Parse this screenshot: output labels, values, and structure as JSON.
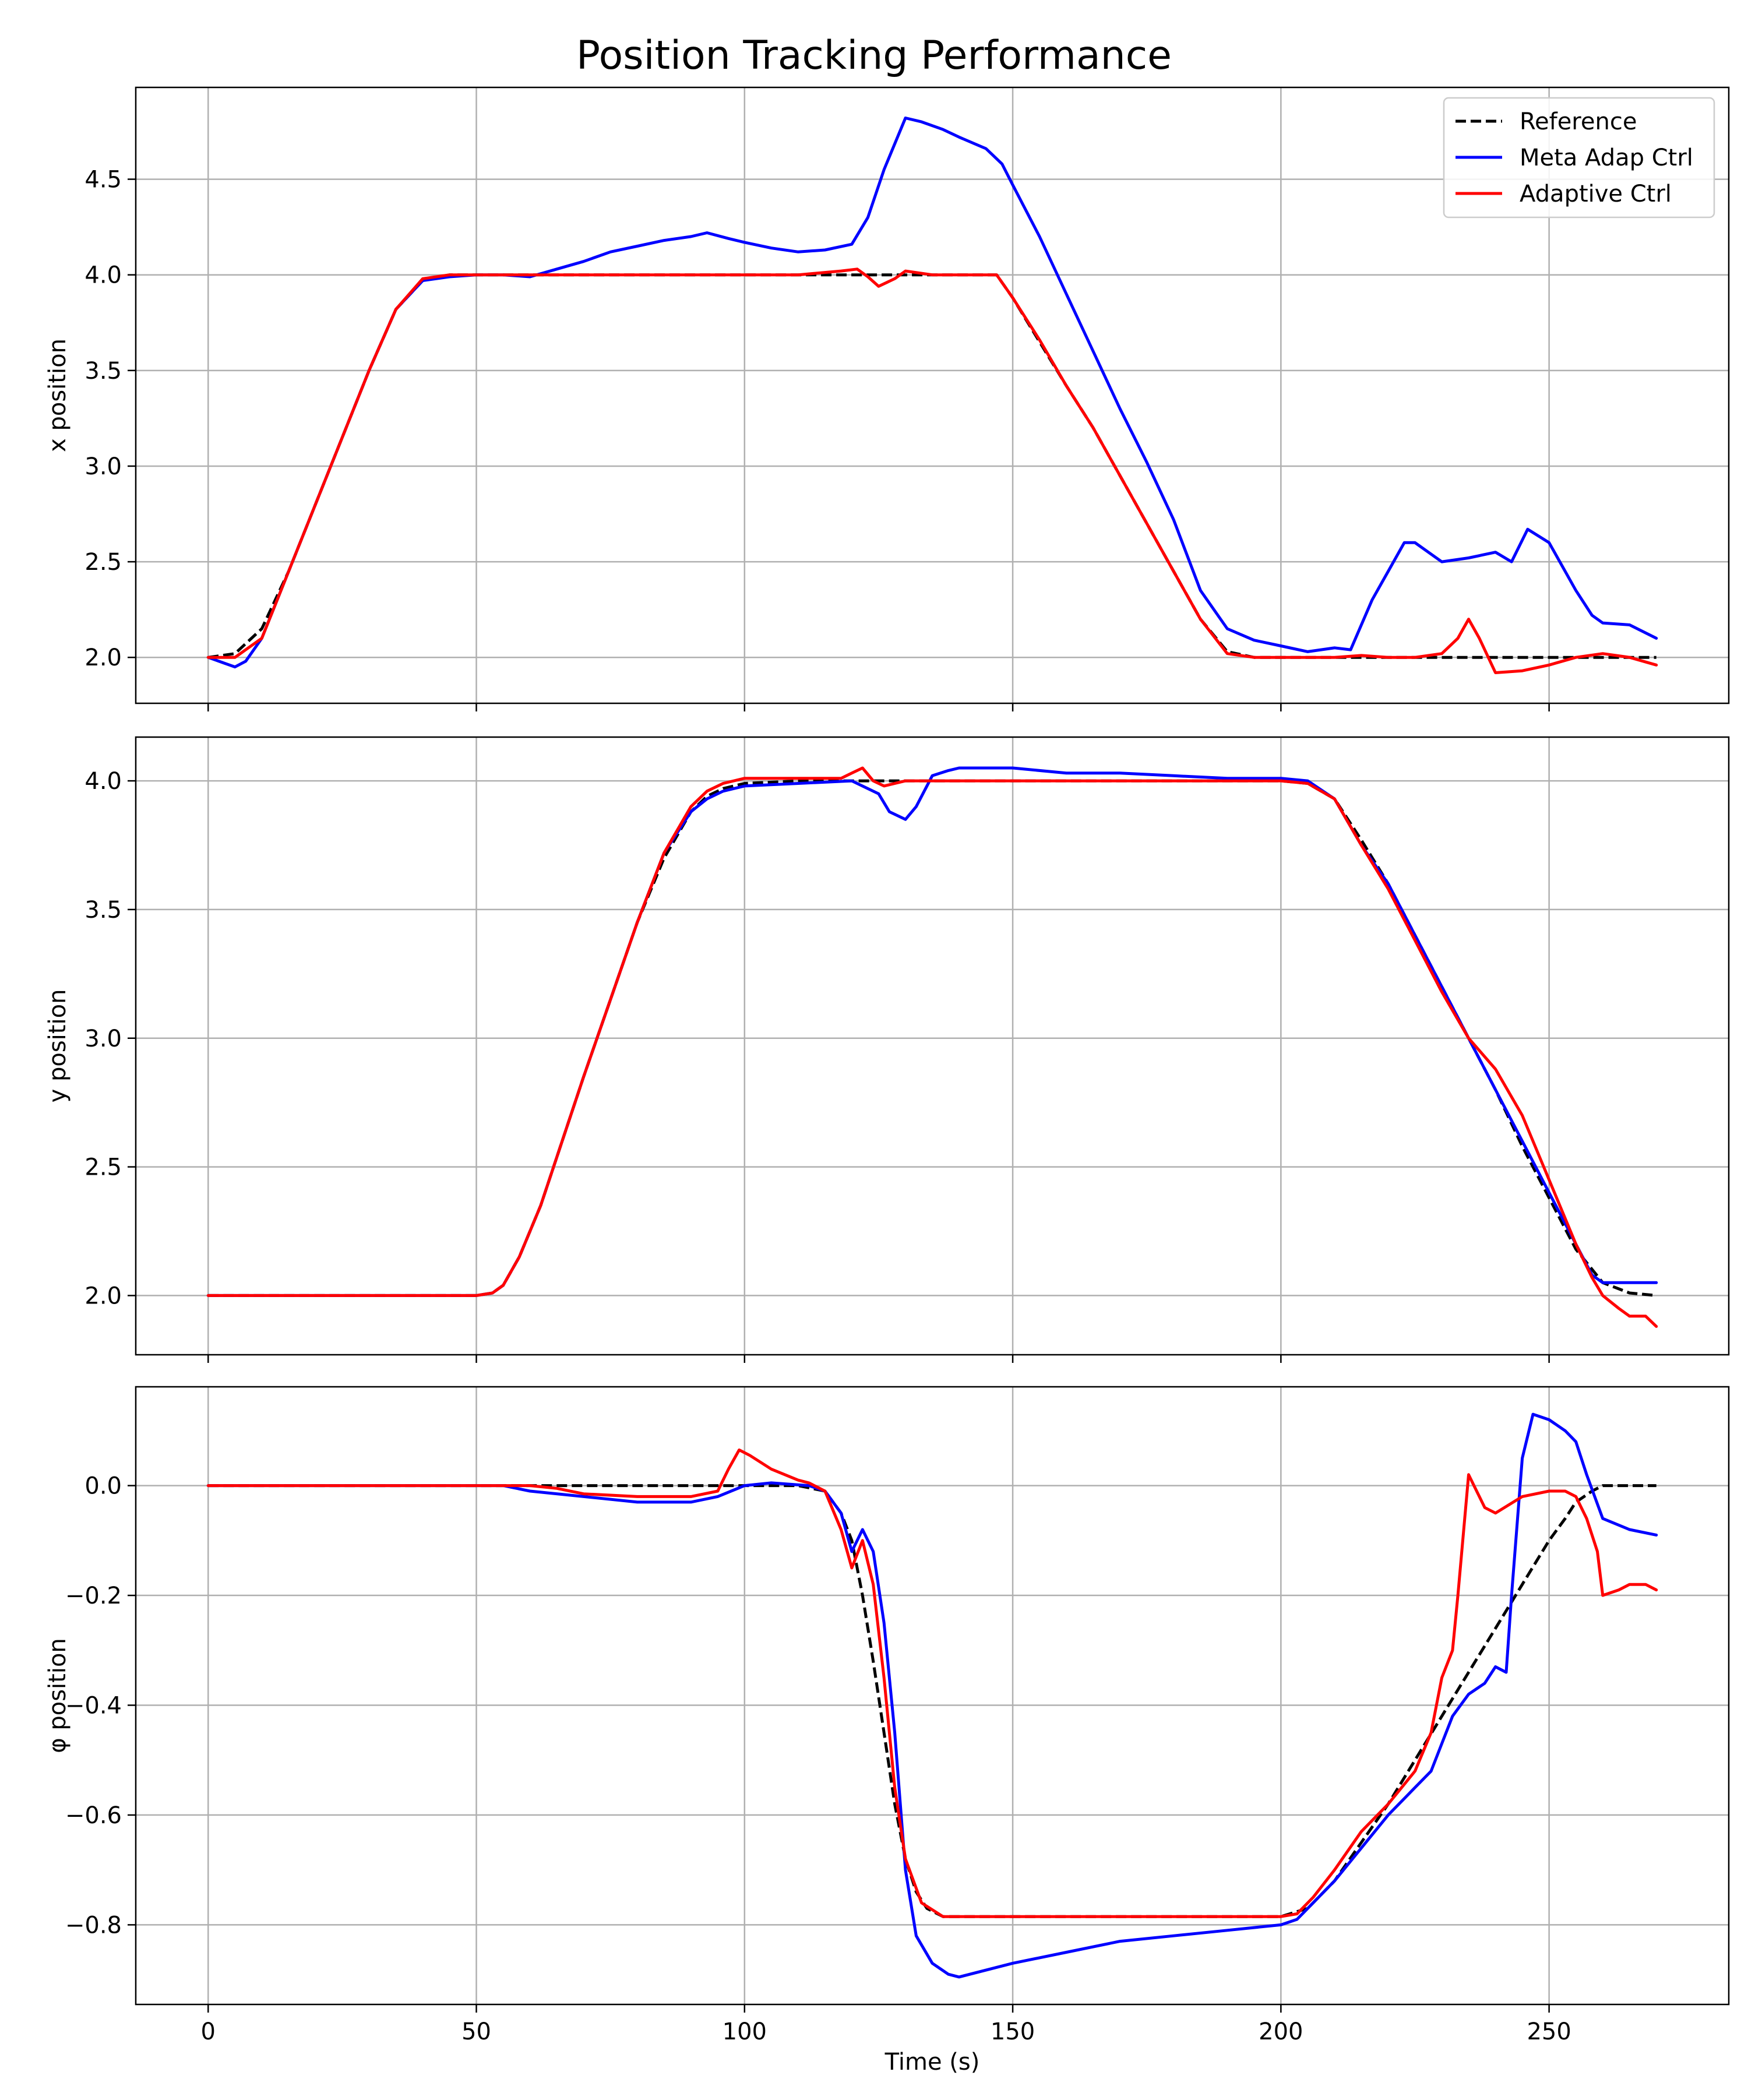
{
  "figure": {
    "title": "Position Tracking Performance"
  },
  "colors": {
    "reference": "#000000",
    "meta": "#0000ff",
    "adaptive": "#ff0000",
    "grid": "#b0b0b0"
  },
  "legend": {
    "position": "top-right",
    "entries": [
      {
        "label": "Reference",
        "color": "#000000",
        "dashed": true
      },
      {
        "label": "Meta Adap Ctrl",
        "color": "#0000ff",
        "dashed": false
      },
      {
        "label": "Adaptive Ctrl",
        "color": "#ff0000",
        "dashed": false
      }
    ]
  },
  "chart_data": [
    {
      "type": "line",
      "title": "Position Tracking Performance",
      "xlabel": "",
      "ylabel": "x position",
      "xlim": [
        -13.5,
        283.5
      ],
      "ylim": [
        1.76,
        4.98
      ],
      "xticks": [
        0,
        50,
        100,
        150,
        200,
        250
      ],
      "xticklabels": [
        "0",
        "50",
        "100",
        "150",
        "200",
        "250"
      ],
      "yticks": [
        2.0,
        2.5,
        3.0,
        3.5,
        4.0,
        4.5
      ],
      "yticklabels": [
        "2.0",
        "2.5",
        "3.0",
        "3.5",
        "4.0",
        "4.5"
      ],
      "grid": true,
      "series": [
        {
          "name": "Reference",
          "color": "#000000",
          "dashed": true,
          "x": [
            0,
            5,
            10,
            15,
            20,
            25,
            30,
            35,
            40,
            45,
            50,
            60,
            70,
            80,
            90,
            100,
            110,
            120,
            130,
            140,
            147,
            150,
            155,
            160,
            165,
            170,
            175,
            180,
            185,
            190,
            195,
            200,
            210,
            220,
            230,
            240,
            250,
            260,
            270
          ],
          "y": [
            2.0,
            2.02,
            2.15,
            2.45,
            2.8,
            3.15,
            3.5,
            3.82,
            3.97,
            4.0,
            4.0,
            4.0,
            4.0,
            4.0,
            4.0,
            4.0,
            4.0,
            4.0,
            4.0,
            4.0,
            4.0,
            3.88,
            3.65,
            3.42,
            3.2,
            2.95,
            2.7,
            2.45,
            2.2,
            2.03,
            2.0,
            2.0,
            2.0,
            2.0,
            2.0,
            2.0,
            2.0,
            2.0,
            2.0
          ]
        },
        {
          "name": "Meta Adap Ctrl",
          "color": "#0000ff",
          "dashed": false,
          "x": [
            0,
            3,
            5,
            7,
            10,
            15,
            20,
            25,
            30,
            35,
            40,
            45,
            50,
            55,
            60,
            65,
            70,
            75,
            80,
            85,
            90,
            93,
            97,
            100,
            105,
            110,
            115,
            120,
            123,
            126,
            130,
            133,
            137,
            140,
            145,
            148,
            150,
            155,
            160,
            165,
            170,
            175,
            180,
            185,
            190,
            195,
            200,
            205,
            210,
            213,
            217,
            220,
            223,
            225,
            230,
            235,
            240,
            243,
            246,
            250,
            255,
            258,
            260,
            265,
            270
          ],
          "y": [
            2.0,
            1.97,
            1.95,
            1.98,
            2.1,
            2.45,
            2.8,
            3.15,
            3.5,
            3.82,
            3.97,
            3.99,
            4.0,
            4.0,
            3.99,
            4.03,
            4.07,
            4.12,
            4.15,
            4.18,
            4.2,
            4.22,
            4.19,
            4.17,
            4.14,
            4.12,
            4.13,
            4.16,
            4.3,
            4.55,
            4.82,
            4.8,
            4.76,
            4.72,
            4.66,
            4.58,
            4.47,
            4.2,
            3.9,
            3.6,
            3.3,
            3.02,
            2.72,
            2.35,
            2.15,
            2.09,
            2.06,
            2.03,
            2.05,
            2.04,
            2.3,
            2.45,
            2.6,
            2.6,
            2.5,
            2.52,
            2.55,
            2.5,
            2.67,
            2.6,
            2.35,
            2.22,
            2.18,
            2.17,
            2.1
          ]
        },
        {
          "name": "Adaptive Ctrl",
          "color": "#ff0000",
          "dashed": false,
          "x": [
            0,
            5,
            10,
            15,
            20,
            25,
            30,
            35,
            40,
            45,
            50,
            60,
            70,
            80,
            90,
            100,
            110,
            118,
            121,
            123,
            125,
            128,
            130,
            135,
            140,
            147,
            150,
            155,
            160,
            165,
            170,
            175,
            180,
            185,
            190,
            195,
            200,
            205,
            210,
            215,
            220,
            225,
            230,
            233,
            235,
            237,
            240,
            245,
            250,
            255,
            260,
            265,
            270
          ],
          "y": [
            2.0,
            2.0,
            2.1,
            2.45,
            2.8,
            3.15,
            3.5,
            3.82,
            3.98,
            4.0,
            4.0,
            4.0,
            4.0,
            4.0,
            4.0,
            4.0,
            4.0,
            4.02,
            4.03,
            3.99,
            3.94,
            3.98,
            4.02,
            4.0,
            4.0,
            4.0,
            3.88,
            3.66,
            3.42,
            3.2,
            2.95,
            2.7,
            2.45,
            2.2,
            2.02,
            2.0,
            2.0,
            2.0,
            2.0,
            2.01,
            2.0,
            2.0,
            2.02,
            2.1,
            2.2,
            2.1,
            1.92,
            1.93,
            1.96,
            2.0,
            2.02,
            2.0,
            1.96
          ]
        }
      ]
    },
    {
      "type": "line",
      "xlabel": "",
      "ylabel": "y position",
      "xlim": [
        -13.5,
        283.5
      ],
      "ylim": [
        1.77,
        4.17
      ],
      "xticks": [
        0,
        50,
        100,
        150,
        200,
        250
      ],
      "xticklabels": [
        "0",
        "50",
        "100",
        "150",
        "200",
        "250"
      ],
      "yticks": [
        2.0,
        2.5,
        3.0,
        3.5,
        4.0
      ],
      "yticklabels": [
        "2.0",
        "2.5",
        "3.0",
        "3.5",
        "4.0"
      ],
      "grid": true,
      "series": [
        {
          "name": "Reference",
          "color": "#000000",
          "dashed": true,
          "x": [
            0,
            10,
            20,
            30,
            40,
            50,
            53,
            55,
            58,
            62,
            66,
            70,
            75,
            80,
            85,
            90,
            93,
            96,
            100,
            110,
            120,
            130,
            140,
            150,
            160,
            170,
            180,
            190,
            200,
            205,
            210,
            215,
            220,
            225,
            230,
            235,
            240,
            245,
            250,
            255,
            260,
            265,
            270
          ],
          "y": [
            2.0,
            2.0,
            2.0,
            2.0,
            2.0,
            2.0,
            2.01,
            2.04,
            2.15,
            2.35,
            2.6,
            2.85,
            3.15,
            3.45,
            3.7,
            3.88,
            3.94,
            3.97,
            3.99,
            4.0,
            4.0,
            4.0,
            4.0,
            4.0,
            4.0,
            4.0,
            4.0,
            4.0,
            4.0,
            3.99,
            3.93,
            3.77,
            3.6,
            3.4,
            3.2,
            3.0,
            2.8,
            2.58,
            2.38,
            2.18,
            2.05,
            2.01,
            2.0
          ]
        },
        {
          "name": "Meta Adap Ctrl",
          "color": "#0000ff",
          "dashed": false,
          "x": [
            0,
            10,
            20,
            30,
            40,
            50,
            53,
            55,
            58,
            62,
            66,
            70,
            75,
            80,
            85,
            90,
            93,
            96,
            100,
            110,
            120,
            125,
            127,
            130,
            132,
            135,
            138,
            140,
            150,
            160,
            170,
            180,
            190,
            200,
            205,
            210,
            215,
            220,
            225,
            230,
            235,
            240,
            245,
            250,
            255,
            258,
            260,
            265,
            270
          ],
          "y": [
            2.0,
            2.0,
            2.0,
            2.0,
            2.0,
            2.0,
            2.01,
            2.04,
            2.15,
            2.35,
            2.6,
            2.85,
            3.15,
            3.45,
            3.72,
            3.88,
            3.93,
            3.96,
            3.98,
            3.99,
            4.0,
            3.95,
            3.88,
            3.85,
            3.9,
            4.02,
            4.04,
            4.05,
            4.05,
            4.03,
            4.03,
            4.02,
            4.01,
            4.01,
            4.0,
            3.93,
            3.75,
            3.6,
            3.4,
            3.2,
            3.0,
            2.8,
            2.6,
            2.4,
            2.2,
            2.08,
            2.05,
            2.05,
            2.05
          ]
        },
        {
          "name": "Adaptive Ctrl",
          "color": "#ff0000",
          "dashed": false,
          "x": [
            0,
            10,
            20,
            30,
            40,
            50,
            53,
            55,
            58,
            62,
            66,
            70,
            75,
            80,
            85,
            90,
            93,
            96,
            100,
            110,
            118,
            120,
            122,
            124,
            126,
            130,
            140,
            150,
            160,
            170,
            180,
            190,
            200,
            205,
            210,
            215,
            220,
            225,
            230,
            235,
            240,
            245,
            250,
            255,
            258,
            260,
            263,
            265,
            268,
            270
          ],
          "y": [
            2.0,
            2.0,
            2.0,
            2.0,
            2.0,
            2.0,
            2.01,
            2.04,
            2.15,
            2.35,
            2.6,
            2.85,
            3.15,
            3.45,
            3.72,
            3.9,
            3.96,
            3.99,
            4.01,
            4.01,
            4.01,
            4.03,
            4.05,
            4.0,
            3.98,
            4.0,
            4.0,
            4.0,
            4.0,
            4.0,
            4.0,
            4.0,
            4.0,
            3.99,
            3.93,
            3.75,
            3.58,
            3.38,
            3.18,
            3.0,
            2.88,
            2.7,
            2.45,
            2.2,
            2.07,
            2.0,
            1.95,
            1.92,
            1.92,
            1.88
          ]
        }
      ]
    },
    {
      "type": "line",
      "xlabel": "Time (s)",
      "ylabel": "φ position",
      "xlim": [
        -13.5,
        283.5
      ],
      "ylim": [
        -0.945,
        0.18
      ],
      "xticks": [
        0,
        50,
        100,
        150,
        200,
        250
      ],
      "xticklabels": [
        "0",
        "50",
        "100",
        "150",
        "200",
        "250"
      ],
      "yticks": [
        0.0,
        -0.2,
        -0.4,
        -0.6,
        -0.8
      ],
      "yticklabels": [
        "0.0",
        "−0.2",
        "−0.4",
        "−0.6",
        "−0.8"
      ],
      "grid": true,
      "series": [
        {
          "name": "Reference",
          "color": "#000000",
          "dashed": true,
          "x": [
            0,
            20,
            40,
            60,
            80,
            100,
            110,
            115,
            118,
            120,
            122,
            124,
            126,
            128,
            130,
            132,
            134,
            137,
            140,
            150,
            160,
            170,
            180,
            190,
            200,
            205,
            210,
            215,
            220,
            225,
            230,
            235,
            240,
            245,
            250,
            253,
            255,
            258,
            260,
            265,
            270
          ],
          "y": [
            0.0,
            0.0,
            0.0,
            0.0,
            0.0,
            0.0,
            0.0,
            -0.01,
            -0.05,
            -0.1,
            -0.2,
            -0.32,
            -0.45,
            -0.58,
            -0.68,
            -0.74,
            -0.77,
            -0.785,
            -0.785,
            -0.785,
            -0.785,
            -0.785,
            -0.785,
            -0.785,
            -0.785,
            -0.77,
            -0.72,
            -0.65,
            -0.58,
            -0.5,
            -0.42,
            -0.34,
            -0.26,
            -0.18,
            -0.1,
            -0.06,
            -0.03,
            -0.01,
            0.0,
            0.0,
            0.0
          ]
        },
        {
          "name": "Meta Adap Ctrl",
          "color": "#0000ff",
          "dashed": false,
          "x": [
            0,
            20,
            40,
            55,
            60,
            70,
            80,
            90,
            95,
            100,
            105,
            112,
            115,
            118,
            120,
            122,
            124,
            126,
            128,
            130,
            132,
            135,
            138,
            140,
            150,
            160,
            170,
            180,
            190,
            200,
            203,
            206,
            210,
            215,
            220,
            225,
            228,
            230,
            232,
            235,
            238,
            240,
            242,
            243,
            245,
            247,
            250,
            253,
            255,
            257,
            260,
            265,
            270
          ],
          "y": [
            0.0,
            0.0,
            0.0,
            0.0,
            -0.01,
            -0.02,
            -0.03,
            -0.03,
            -0.02,
            0.0,
            0.005,
            0.0,
            -0.01,
            -0.05,
            -0.12,
            -0.08,
            -0.12,
            -0.25,
            -0.45,
            -0.7,
            -0.82,
            -0.87,
            -0.89,
            -0.895,
            -0.87,
            -0.85,
            -0.83,
            -0.82,
            -0.81,
            -0.8,
            -0.79,
            -0.76,
            -0.72,
            -0.66,
            -0.6,
            -0.55,
            -0.52,
            -0.47,
            -0.42,
            -0.38,
            -0.36,
            -0.33,
            -0.34,
            -0.2,
            0.05,
            0.13,
            0.12,
            0.1,
            0.08,
            0.02,
            -0.06,
            -0.08,
            -0.09
          ]
        },
        {
          "name": "Adaptive Ctrl",
          "color": "#ff0000",
          "dashed": false,
          "x": [
            0,
            20,
            40,
            55,
            60,
            65,
            70,
            80,
            90,
            95,
            97,
            99,
            101,
            105,
            110,
            112,
            115,
            118,
            120,
            122,
            124,
            126,
            128,
            130,
            133,
            137,
            140,
            150,
            160,
            170,
            180,
            190,
            200,
            203,
            206,
            210,
            215,
            220,
            225,
            228,
            230,
            232,
            233,
            235,
            236,
            238,
            240,
            245,
            250,
            253,
            255,
            257,
            259,
            260,
            263,
            265,
            268,
            270
          ],
          "y": [
            0.0,
            0.0,
            0.0,
            0.0,
            0.0,
            -0.005,
            -0.015,
            -0.02,
            -0.02,
            -0.01,
            0.03,
            0.065,
            0.055,
            0.03,
            0.01,
            0.005,
            -0.01,
            -0.08,
            -0.15,
            -0.1,
            -0.18,
            -0.35,
            -0.55,
            -0.68,
            -0.76,
            -0.785,
            -0.785,
            -0.785,
            -0.785,
            -0.785,
            -0.785,
            -0.785,
            -0.785,
            -0.78,
            -0.75,
            -0.7,
            -0.63,
            -0.58,
            -0.52,
            -0.45,
            -0.35,
            -0.3,
            -0.2,
            0.02,
            0.0,
            -0.04,
            -0.05,
            -0.02,
            -0.01,
            -0.01,
            -0.02,
            -0.06,
            -0.12,
            -0.2,
            -0.19,
            -0.18,
            -0.18,
            -0.19
          ]
        }
      ]
    }
  ]
}
